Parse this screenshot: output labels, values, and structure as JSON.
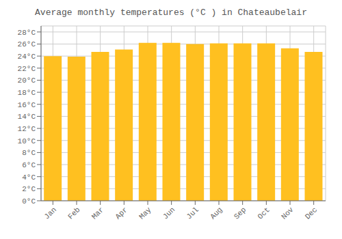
{
  "chart_data": {
    "type": "bar",
    "title": "Average monthly temperatures (°C ) in Chateaubelair",
    "categories": [
      "Jan",
      "Feb",
      "Mar",
      "Apr",
      "May",
      "Jun",
      "Jul",
      "Aug",
      "Sep",
      "Oct",
      "Nov",
      "Dec"
    ],
    "values": [
      24.0,
      23.9,
      24.7,
      25.1,
      26.2,
      26.2,
      26.0,
      26.1,
      26.1,
      26.1,
      25.3,
      24.7
    ],
    "color": "#FFC020",
    "ylim": [
      0,
      29
    ],
    "yticks": [
      {
        "value": 0,
        "label": "0°C"
      },
      {
        "value": 2,
        "label": "2°C"
      },
      {
        "value": 4,
        "label": "4°C"
      },
      {
        "value": 6,
        "label": "6°C"
      },
      {
        "value": 8,
        "label": "8°C"
      },
      {
        "value": 10,
        "label": "10°C"
      },
      {
        "value": 12,
        "label": "12°C"
      },
      {
        "value": 14,
        "label": "14°C"
      },
      {
        "value": 16,
        "label": "16°C"
      },
      {
        "value": 18,
        "label": "18°C"
      },
      {
        "value": 20,
        "label": "20°C"
      },
      {
        "value": 22,
        "label": "22°C"
      },
      {
        "value": 24,
        "label": "24°C"
      },
      {
        "value": 26,
        "label": "26°C"
      },
      {
        "value": 28,
        "label": "28°C"
      }
    ],
    "grid": true
  }
}
